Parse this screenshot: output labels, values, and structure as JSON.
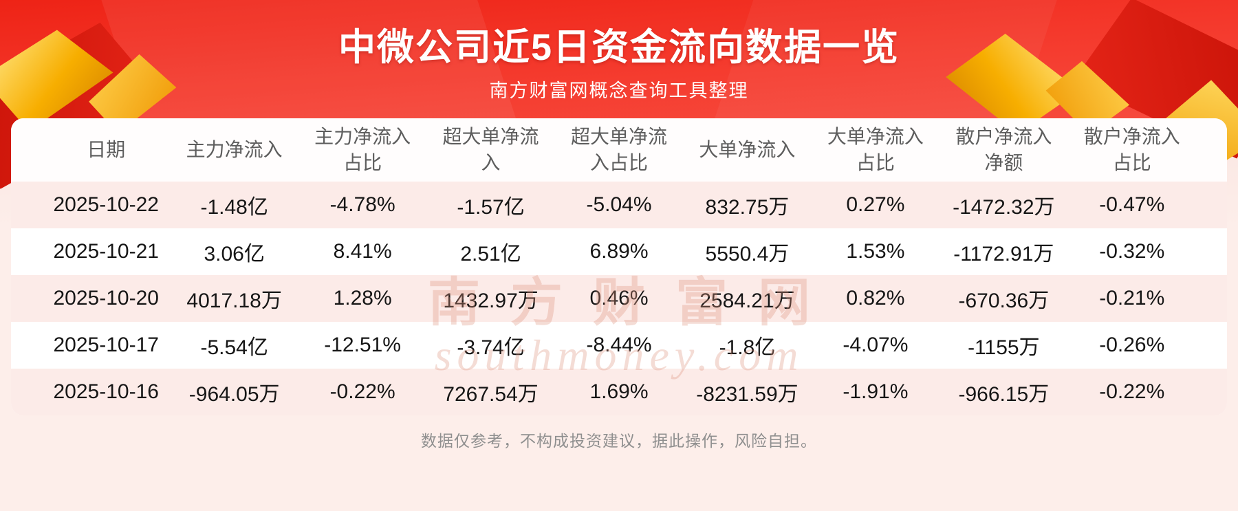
{
  "header": {
    "title": "中微公司近5日资金流向数据一览",
    "subtitle": "南方财富网概念查询工具整理"
  },
  "chart_data": {
    "type": "table",
    "title": "中微公司近5日资金流向数据一览",
    "subtitle": "南方财富网概念查询工具整理",
    "columns": [
      "日期",
      "主力净流入",
      "主力净流入占比",
      "超大单净流入",
      "超大单净流入占比",
      "大单净流入",
      "大单净流入占比",
      "散户净流入净额",
      "散户净流入占比"
    ],
    "rows": [
      [
        "2025-10-22",
        "-1.48亿",
        "-4.78%",
        "-1.57亿",
        "-5.04%",
        "832.75万",
        "0.27%",
        "-1472.32万",
        "-0.47%"
      ],
      [
        "2025-10-21",
        "3.06亿",
        "8.41%",
        "2.51亿",
        "6.89%",
        "5550.4万",
        "1.53%",
        "-1172.91万",
        "-0.32%"
      ],
      [
        "2025-10-20",
        "4017.18万",
        "1.28%",
        "1432.97万",
        "0.46%",
        "2584.21万",
        "0.82%",
        "-670.36万",
        "-0.21%"
      ],
      [
        "2025-10-17",
        "-5.54亿",
        "-12.51%",
        "-3.74亿",
        "-8.44%",
        "-1.8亿",
        "-4.07%",
        "-1155万",
        "-0.26%"
      ],
      [
        "2025-10-16",
        "-964.05万",
        "-0.22%",
        "7267.54万",
        "1.69%",
        "-8231.59万",
        "-1.91%",
        "-966.15万",
        "-0.22%"
      ]
    ]
  },
  "watermark": {
    "text": "南方财富网",
    "subtext": "southmoney.com"
  },
  "footer": {
    "disclaimer": "数据仅参考，不构成投资建议，据此操作，风险自担。"
  },
  "colors": {
    "banner_red": "#f53c2f",
    "banner_red_dark": "#ee2316",
    "gold": "#f7ae00",
    "row_pink": "#fcebe8",
    "text_dark": "#161616",
    "header_gray": "#5d5d5d",
    "footer_gray": "#8f8f8f"
  }
}
